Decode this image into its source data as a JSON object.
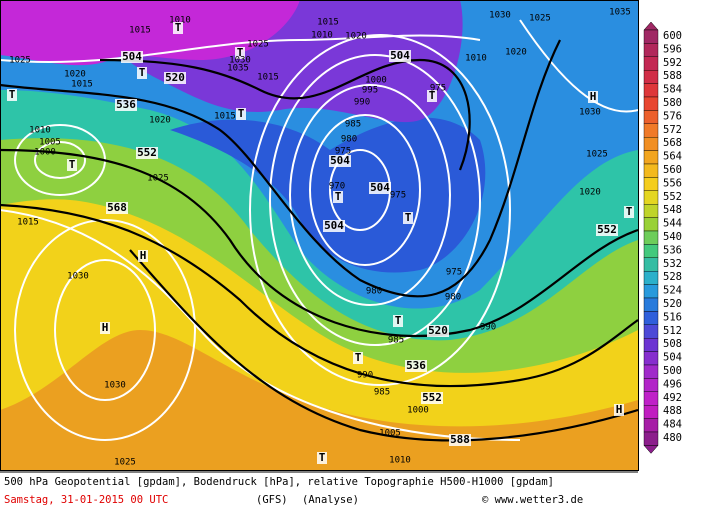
{
  "map": {
    "labels": [
      "1010",
      "1015",
      "T",
      "504",
      "T",
      "520",
      "1025",
      "1020",
      "1015",
      "T",
      "536",
      "1020",
      "1010",
      "1005",
      "1000",
      "T",
      "552",
      "1025",
      "568",
      "1015",
      "H",
      "1030",
      "H",
      "1030",
      "1025",
      "T",
      "1010",
      "1005",
      "588",
      "552",
      "1000",
      "985",
      "990",
      "T",
      "536",
      "985",
      "T",
      "520",
      "990",
      "980",
      "975",
      "980",
      "504",
      "T",
      "504",
      "975",
      "970",
      "T",
      "504",
      "975",
      "980",
      "985",
      "990",
      "995",
      "1000",
      "504",
      "T",
      "975",
      "1010",
      "1020",
      "1015",
      "1025",
      "T",
      "1030",
      "1035",
      "1015",
      "T",
      "1015",
      "1030",
      "1025",
      "1035",
      "1010",
      "1020",
      "H",
      "1030",
      "1025",
      "1020",
      "T",
      "552",
      "H"
    ]
  },
  "legend": {
    "values": [
      600,
      596,
      592,
      588,
      584,
      580,
      576,
      572,
      568,
      564,
      560,
      556,
      552,
      548,
      544,
      540,
      536,
      532,
      528,
      524,
      520,
      516,
      512,
      508,
      504,
      500,
      496,
      492,
      488,
      484,
      480
    ]
  },
  "footer": {
    "description": "500 hPa Geopotential [gpdam], Bodendruck [hPa], relative Topographie H500-H1000 [gpdam]",
    "date": "Samstag, 31-01-2015  00 UTC",
    "model": "(GFS)",
    "run": "(Analyse)",
    "source": "© www.wetter3.de"
  }
}
